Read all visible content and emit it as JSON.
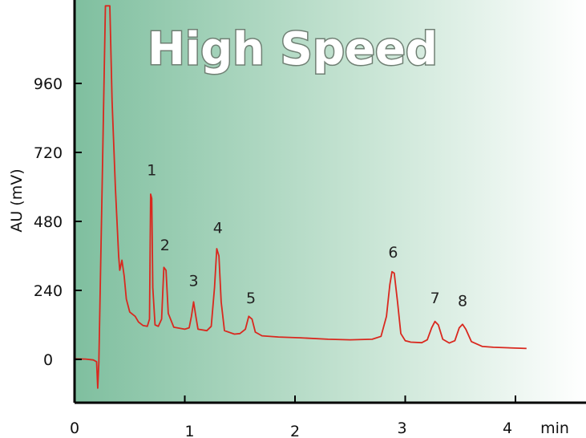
{
  "chart_data": {
    "type": "line",
    "title": "High Speed",
    "ylabel": "AU (mV)",
    "xlabel": "",
    "x_unit_label": "min",
    "xlim": [
      0,
      4.6
    ],
    "ylim": [
      -150,
      1240
    ],
    "x_ticks": [
      {
        "value": 0,
        "label": "0"
      },
      {
        "value": 1,
        "label": "1"
      },
      {
        "value": 2,
        "label": "2"
      },
      {
        "value": 3,
        "label": "3"
      },
      {
        "value": 4,
        "label": "4"
      }
    ],
    "y_ticks": [
      {
        "value": 0,
        "label": "0"
      },
      {
        "value": 240,
        "label": "240"
      },
      {
        "value": 480,
        "label": "480"
      },
      {
        "value": 720,
        "label": "720"
      },
      {
        "value": 960,
        "label": "960"
      }
    ],
    "colors": {
      "trace": "#d9281e",
      "background_start": "#7fbf9f",
      "background_end": "#ffffff",
      "banner_outline": "#6f7f73"
    },
    "series": [
      {
        "values": [
          {
            "x": 0.0,
            "y": 2
          },
          {
            "x": 0.1,
            "y": 1
          },
          {
            "x": 0.17,
            "y": -2
          },
          {
            "x": 0.2,
            "y": -8
          },
          {
            "x": 0.21,
            "y": -100
          },
          {
            "x": 0.22,
            "y": -12
          },
          {
            "x": 0.25,
            "y": 600
          },
          {
            "x": 0.28,
            "y": 1230
          },
          {
            "x": 0.32,
            "y": 1230
          },
          {
            "x": 0.34,
            "y": 900
          },
          {
            "x": 0.37,
            "y": 600
          },
          {
            "x": 0.4,
            "y": 360
          },
          {
            "x": 0.41,
            "y": 310
          },
          {
            "x": 0.43,
            "y": 345
          },
          {
            "x": 0.45,
            "y": 290
          },
          {
            "x": 0.47,
            "y": 210
          },
          {
            "x": 0.5,
            "y": 165
          },
          {
            "x": 0.55,
            "y": 150
          },
          {
            "x": 0.58,
            "y": 130
          },
          {
            "x": 0.62,
            "y": 118
          },
          {
            "x": 0.66,
            "y": 115
          },
          {
            "x": 0.68,
            "y": 140
          },
          {
            "x": 0.69,
            "y": 575
          },
          {
            "x": 0.7,
            "y": 560
          },
          {
            "x": 0.71,
            "y": 250
          },
          {
            "x": 0.73,
            "y": 120
          },
          {
            "x": 0.76,
            "y": 115
          },
          {
            "x": 0.79,
            "y": 140
          },
          {
            "x": 0.81,
            "y": 320
          },
          {
            "x": 0.83,
            "y": 310
          },
          {
            "x": 0.85,
            "y": 160
          },
          {
            "x": 0.9,
            "y": 112
          },
          {
            "x": 1.0,
            "y": 105
          },
          {
            "x": 1.04,
            "y": 110
          },
          {
            "x": 1.06,
            "y": 150
          },
          {
            "x": 1.08,
            "y": 200
          },
          {
            "x": 1.1,
            "y": 150
          },
          {
            "x": 1.12,
            "y": 105
          },
          {
            "x": 1.2,
            "y": 100
          },
          {
            "x": 1.24,
            "y": 115
          },
          {
            "x": 1.27,
            "y": 250
          },
          {
            "x": 1.29,
            "y": 385
          },
          {
            "x": 1.31,
            "y": 360
          },
          {
            "x": 1.33,
            "y": 200
          },
          {
            "x": 1.36,
            "y": 100
          },
          {
            "x": 1.45,
            "y": 88
          },
          {
            "x": 1.5,
            "y": 90
          },
          {
            "x": 1.55,
            "y": 105
          },
          {
            "x": 1.58,
            "y": 150
          },
          {
            "x": 1.61,
            "y": 140
          },
          {
            "x": 1.64,
            "y": 95
          },
          {
            "x": 1.7,
            "y": 82
          },
          {
            "x": 1.85,
            "y": 78
          },
          {
            "x": 2.05,
            "y": 75
          },
          {
            "x": 2.3,
            "y": 70
          },
          {
            "x": 2.5,
            "y": 68
          },
          {
            "x": 2.7,
            "y": 70
          },
          {
            "x": 2.78,
            "y": 80
          },
          {
            "x": 2.83,
            "y": 150
          },
          {
            "x": 2.86,
            "y": 260
          },
          {
            "x": 2.88,
            "y": 305
          },
          {
            "x": 2.9,
            "y": 300
          },
          {
            "x": 2.93,
            "y": 200
          },
          {
            "x": 2.96,
            "y": 90
          },
          {
            "x": 3.0,
            "y": 65
          },
          {
            "x": 3.05,
            "y": 60
          },
          {
            "x": 3.15,
            "y": 58
          },
          {
            "x": 3.2,
            "y": 68
          },
          {
            "x": 3.24,
            "y": 110
          },
          {
            "x": 3.27,
            "y": 132
          },
          {
            "x": 3.3,
            "y": 120
          },
          {
            "x": 3.34,
            "y": 70
          },
          {
            "x": 3.4,
            "y": 57
          },
          {
            "x": 3.45,
            "y": 65
          },
          {
            "x": 3.49,
            "y": 110
          },
          {
            "x": 3.52,
            "y": 122
          },
          {
            "x": 3.55,
            "y": 105
          },
          {
            "x": 3.6,
            "y": 62
          },
          {
            "x": 3.7,
            "y": 45
          },
          {
            "x": 3.8,
            "y": 42
          },
          {
            "x": 4.1,
            "y": 38
          }
        ]
      }
    ],
    "annotations": [
      {
        "label": "1",
        "x": 0.7,
        "y": 640
      },
      {
        "label": "2",
        "x": 0.82,
        "y": 380
      },
      {
        "label": "3",
        "x": 1.08,
        "y": 255
      },
      {
        "label": "4",
        "x": 1.3,
        "y": 440
      },
      {
        "label": "5",
        "x": 1.6,
        "y": 195
      },
      {
        "label": "6",
        "x": 2.89,
        "y": 355
      },
      {
        "label": "7",
        "x": 3.27,
        "y": 195
      },
      {
        "label": "8",
        "x": 3.52,
        "y": 185
      }
    ]
  }
}
